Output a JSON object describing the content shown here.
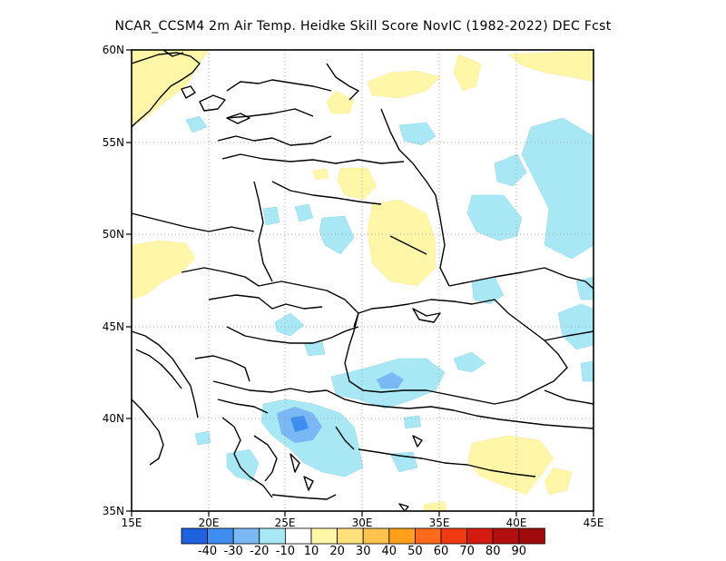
{
  "title": "NCAR_CCSM4  2m Air Temp. Heidke Skill Score NovIC (1982-2022) DEC Fcst",
  "map": {
    "lon_range": [
      15,
      45
    ],
    "lat_range": [
      35,
      60
    ],
    "grid": "dotted",
    "x_ticks": [
      "15E",
      "20E",
      "25E",
      "30E",
      "35E",
      "40E",
      "45E"
    ],
    "y_ticks": [
      "35N",
      "40N",
      "45N",
      "50N",
      "55N",
      "60N"
    ]
  },
  "colorbar": {
    "labels": [
      "-40",
      "-30",
      "-20",
      "-10",
      "10",
      "20",
      "30",
      "40",
      "50",
      "60",
      "70",
      "80",
      "90"
    ],
    "colors": [
      "#1f62e0",
      "#3d8ef0",
      "#7ab8f5",
      "#a8e8f5",
      "#ffffff",
      "#fff6a8",
      "#ffe07a",
      "#ffc24d",
      "#ff9f1a",
      "#ff6a1a",
      "#f03a14",
      "#d51a10",
      "#b40f0f",
      "#a00a0a"
    ]
  },
  "icons": {
    "colorbar": "colorbar-legend"
  }
}
